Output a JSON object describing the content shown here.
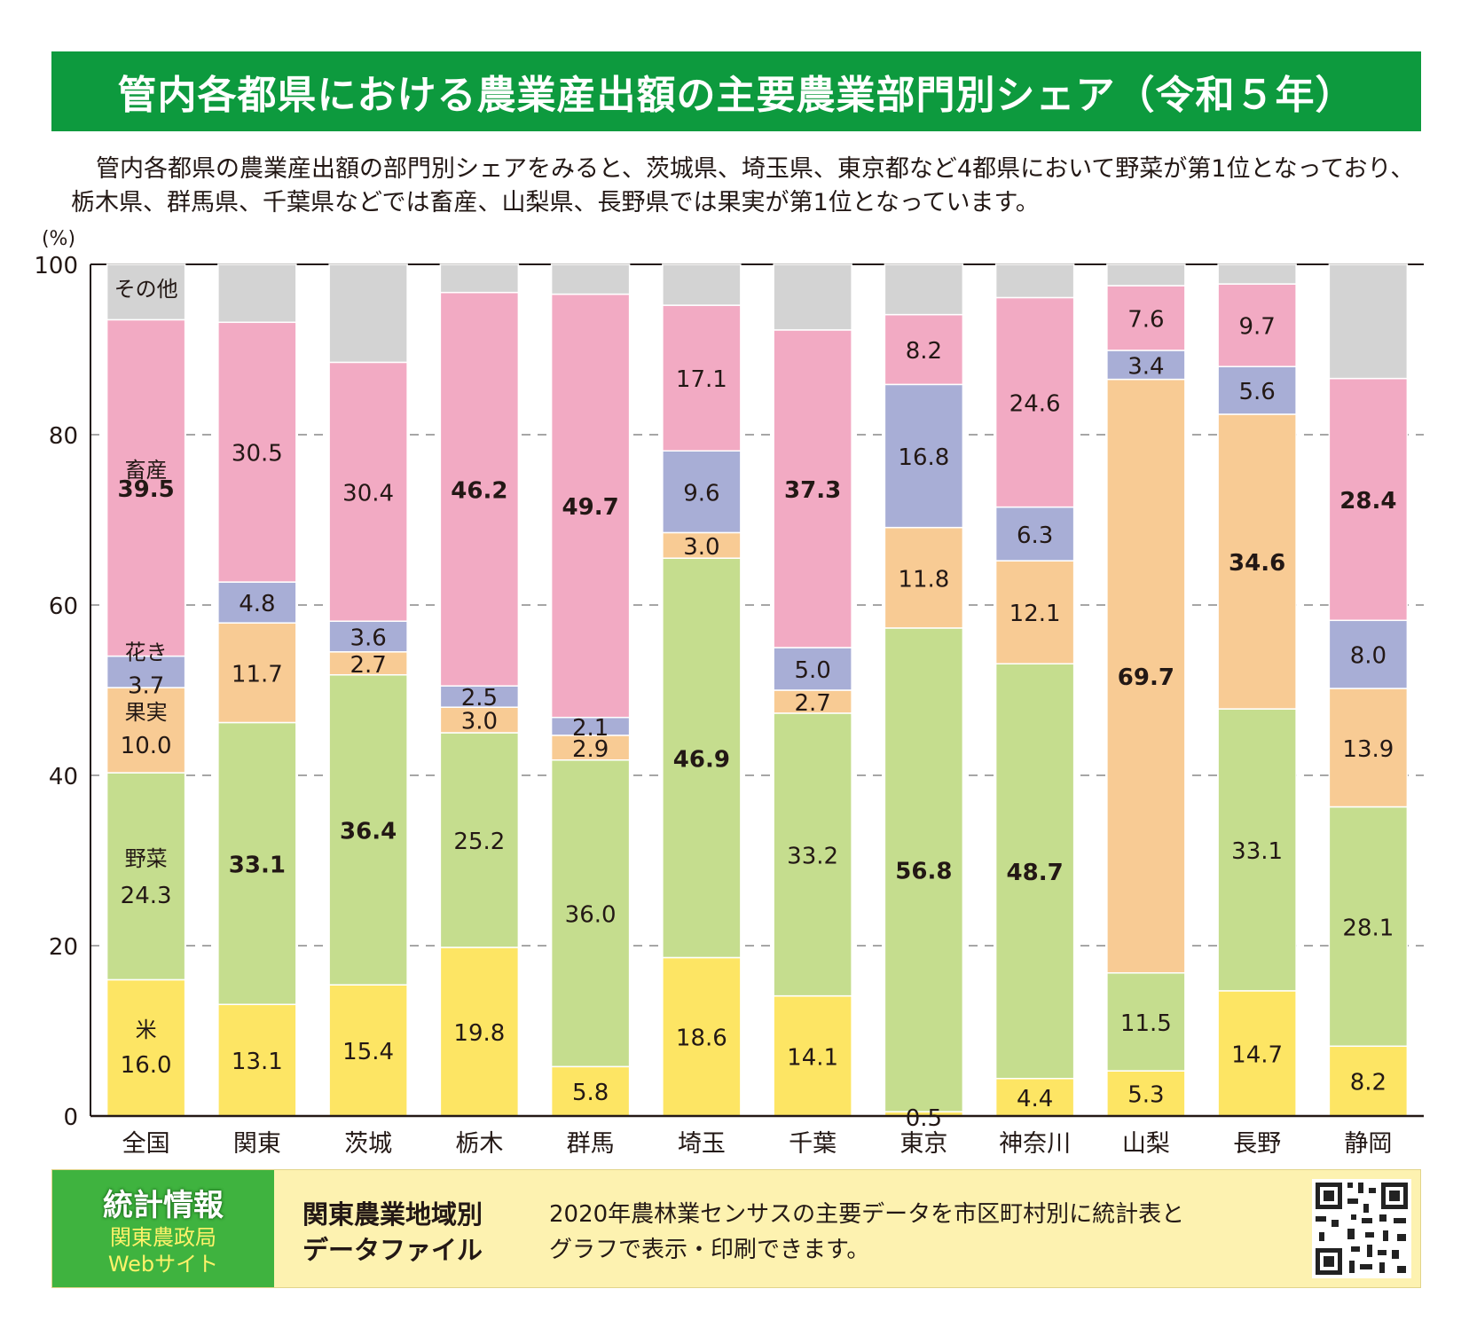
{
  "header": {
    "title": "管内各都県における農業産出額の主要農業部門別シェア（令和５年）",
    "intro": "管内各都県の農業産出額の部門別シェアをみると、茨城県、埼玉県、東京都など4都県において野菜が第1位となっており、栃木県、群馬県、千葉県などでは畜産、山梨県、長野県では果実が第1位となっています。"
  },
  "chart_data": {
    "type": "bar",
    "stacked": true,
    "ylabel": "(%)",
    "ylim": [
      0,
      100
    ],
    "yticks": [
      0,
      20,
      40,
      60,
      80,
      100
    ],
    "grid": true,
    "categories": [
      "全国",
      "関東",
      "茨城",
      "栃木",
      "群馬",
      "埼玉",
      "千葉",
      "東京",
      "神奈川",
      "山梨",
      "長野",
      "静岡"
    ],
    "series": [
      {
        "name": "米",
        "color": "#fde564",
        "values": [
          16.0,
          13.1,
          15.4,
          19.8,
          5.8,
          18.6,
          14.1,
          0.5,
          4.4,
          5.3,
          14.7,
          8.2
        ]
      },
      {
        "name": "野菜",
        "color": "#c5dd8e",
        "values": [
          24.3,
          33.1,
          36.4,
          25.2,
          36.0,
          46.9,
          33.2,
          56.8,
          48.7,
          11.5,
          33.1,
          28.1
        ]
      },
      {
        "name": "果実",
        "color": "#f8cb94",
        "values": [
          10.0,
          11.7,
          2.7,
          3.0,
          2.9,
          3.0,
          2.7,
          11.8,
          12.1,
          69.7,
          34.6,
          13.9
        ]
      },
      {
        "name": "花き",
        "color": "#a8aed6",
        "values": [
          3.7,
          4.8,
          3.6,
          2.5,
          2.1,
          9.6,
          5.0,
          16.8,
          6.3,
          3.4,
          5.6,
          8.0
        ]
      },
      {
        "name": "畜産",
        "color": "#f2aac3",
        "values": [
          39.5,
          30.5,
          30.4,
          46.2,
          49.7,
          17.1,
          37.3,
          8.2,
          24.6,
          7.6,
          9.7,
          28.4
        ]
      },
      {
        "name": "その他",
        "color": "#d3d3d3",
        "values": [
          6.5,
          6.8,
          11.5,
          3.3,
          3.5,
          4.8,
          7.7,
          5.9,
          3.9,
          2.5,
          2.3,
          13.4
        ]
      }
    ],
    "labels": [
      [
        "16.0",
        "13.1",
        "15.4",
        "19.8",
        "5.8",
        "18.6",
        "14.1",
        "0.5",
        "4.4",
        "5.3",
        "14.7",
        "8.2"
      ],
      [
        "24.3",
        "33.1",
        "36.4",
        "25.2",
        "36.0",
        "46.9",
        "33.2",
        "56.8",
        "48.7",
        "11.5",
        "33.1",
        "28.1"
      ],
      [
        "10.0",
        "11.7",
        "2.7",
        "3.0",
        "2.9",
        "3.0",
        "2.7",
        "11.8",
        "12.1",
        "69.7",
        "34.6",
        "13.9"
      ],
      [
        "3.7",
        "4.8",
        "3.6",
        "2.5",
        "2.1",
        "9.6",
        "5.0",
        "16.8",
        "6.3",
        "3.4",
        "5.6",
        "8.0"
      ],
      [
        "39.5",
        "30.5",
        "30.4",
        "46.2",
        "49.7",
        "17.1",
        "37.3",
        "8.2",
        "24.6",
        "7.6",
        "9.7",
        "28.4"
      ]
    ],
    "bold_labels": [
      [
        false,
        false,
        false,
        false,
        false,
        false,
        false,
        false,
        false,
        false,
        false,
        false
      ],
      [
        false,
        true,
        true,
        false,
        false,
        true,
        false,
        true,
        true,
        false,
        false,
        false
      ],
      [
        false,
        false,
        false,
        false,
        false,
        false,
        false,
        false,
        false,
        true,
        true,
        false
      ],
      [
        false,
        false,
        false,
        false,
        false,
        false,
        false,
        false,
        false,
        false,
        false,
        false
      ],
      [
        true,
        false,
        false,
        true,
        true,
        false,
        true,
        false,
        false,
        false,
        false,
        true
      ]
    ]
  },
  "footer": {
    "badge_main": "統計情報",
    "badge_sub1": "関東農政局",
    "badge_sub2": "Webサイト",
    "heading_line1": "関東農業地域別",
    "heading_line2": "データファイル",
    "desc_line1": "2020年農林業センサスの主要データを市区町村別に統計表と",
    "desc_line2": "グラフで表示・印刷できます。",
    "qr_icon": "qr-code-icon"
  }
}
